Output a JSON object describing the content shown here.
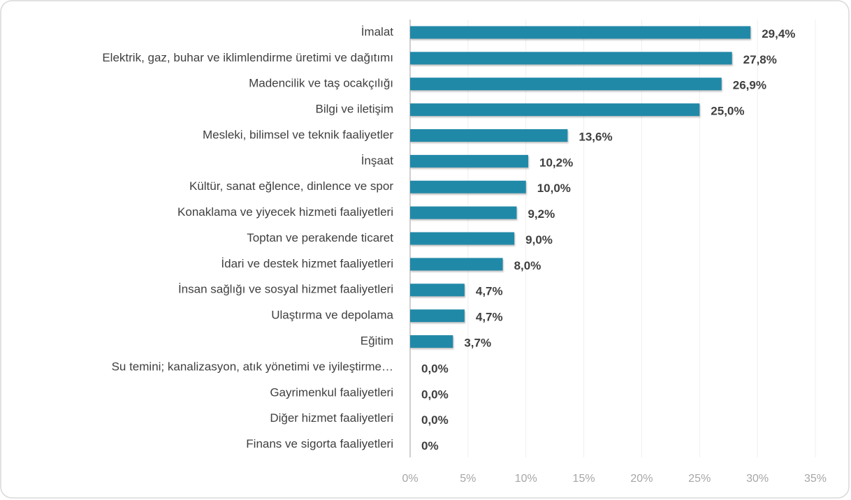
{
  "chart_data": {
    "type": "bar",
    "orientation": "horizontal",
    "categories": [
      "İmalat",
      "Elektrik, gaz, buhar ve iklimlendirme üretimi ve dağıtımı",
      "Madencilik ve taş ocakçılığı",
      "Bilgi ve iletişim",
      "Mesleki, bilimsel ve teknik faaliyetler",
      "İnşaat",
      "Kültür, sanat eğlence, dinlence ve spor",
      "Konaklama ve yiyecek hizmeti faaliyetleri",
      "Toptan ve perakende ticaret",
      "İdari ve destek hizmet faaliyetleri",
      "İnsan sağlığı ve sosyal hizmet faaliyetleri",
      "Ulaştırma ve depolama",
      "Eğitim",
      "Su temini; kanalizasyon, atık yönetimi ve iyileştirme…",
      "Gayrimenkul faaliyetleri",
      "Diğer hizmet faaliyetleri",
      "Finans ve sigorta faaliyetleri"
    ],
    "values": [
      29.4,
      27.8,
      26.9,
      25.0,
      13.6,
      10.2,
      10.0,
      9.2,
      9.0,
      8.0,
      4.7,
      4.7,
      3.7,
      0,
      0,
      0,
      0
    ],
    "value_labels": [
      "29,4%",
      "27,8%",
      "26,9%",
      "25,0%",
      "13,6%",
      "10,2%",
      "10,0%",
      "9,2%",
      "9,0%",
      "8,0%",
      "4,7%",
      "4,7%",
      "3,7%",
      "0,0%",
      "0,0%",
      "0,0%",
      "0%"
    ],
    "color": "#2189a8",
    "xlim": [
      0,
      35
    ],
    "xticks": [
      {
        "value": 0,
        "label": "0%"
      },
      {
        "value": 5,
        "label": "5%"
      },
      {
        "value": 10,
        "label": "10%"
      },
      {
        "value": 15,
        "label": "15%"
      },
      {
        "value": 20,
        "label": "20%"
      },
      {
        "value": 25,
        "label": "25%"
      },
      {
        "value": 30,
        "label": "30%"
      },
      {
        "value": 35,
        "label": "35%"
      }
    ],
    "grid": true
  }
}
